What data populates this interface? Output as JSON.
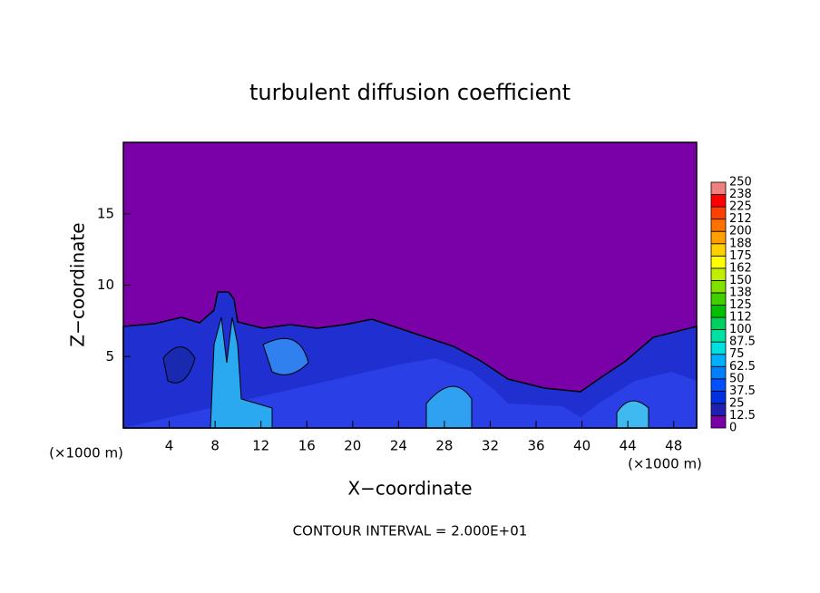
{
  "chart_data": {
    "type": "contour",
    "title": "turbulent diffusion coefficient",
    "x_label": "X−coordinate",
    "y_label": "Z−coordinate",
    "x_unit_labels": [
      "(×1000 m)",
      "(×1000 m)"
    ],
    "footnote": "CONTOUR INTERVAL = 2.000E+01",
    "xlim": [
      0,
      50
    ],
    "xticks": [
      4,
      8,
      12,
      16,
      20,
      24,
      28,
      32,
      36,
      40,
      44,
      48
    ],
    "ylim": [
      0,
      20
    ],
    "yticks": [
      5,
      10,
      15
    ],
    "colorbar": {
      "levels": [
        0,
        12.5,
        25,
        37.5,
        50,
        62.5,
        75,
        87.5,
        100,
        {
          "value": 112.5,
          "label": "112"
        },
        125,
        {
          "value": 137.5,
          "label": "138"
        },
        150,
        {
          "value": 162.5,
          "label": "162"
        },
        175,
        {
          "value": 187.5,
          "label": "188"
        },
        200,
        {
          "value": 212.5,
          "label": "212"
        },
        225,
        {
          "value": 237.5,
          "label": "238"
        },
        250
      ],
      "colors": [
        "#7a00a8",
        "#2020b0",
        "#0030e0",
        "#0050ff",
        "#0080ff",
        "#00b0ff",
        "#00e0e0",
        "#00e0a0",
        "#00d060",
        "#00c000",
        "#40d000",
        "#80e000",
        "#c0f000",
        "#ffff00",
        "#ffd000",
        "#ffa000",
        "#ff7000",
        "#ff4000",
        "#ff0000",
        "#f08080"
      ]
    }
  }
}
